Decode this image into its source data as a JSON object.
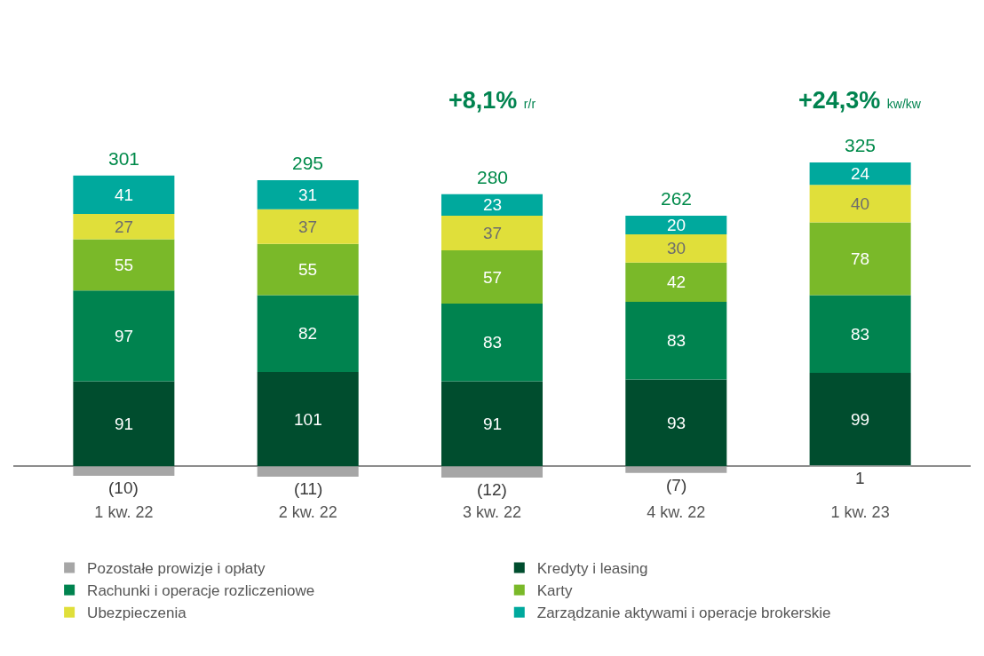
{
  "chart_data": {
    "type": "bar",
    "stacked": true,
    "categories": [
      "1 kw. 22",
      "2 kw. 22",
      "3 kw. 22",
      "4 kw. 22",
      "1 kw. 23"
    ],
    "series": [
      {
        "name": "Pozostałe prowizje i opłaty",
        "color": "#a6a6a6",
        "values": [
          -10,
          -11,
          -12,
          -7,
          1
        ],
        "value_labels": [
          "(10)",
          "(11)",
          "(12)",
          "(7)",
          "1"
        ]
      },
      {
        "name": "Kredyty i leasing",
        "color": "#004d2e",
        "values": [
          91,
          101,
          91,
          93,
          99
        ]
      },
      {
        "name": "Rachunki i operacje rozliczeniowe",
        "color": "#00834f",
        "values": [
          97,
          82,
          83,
          83,
          83
        ]
      },
      {
        "name": "Karty",
        "color": "#7ab929",
        "values": [
          55,
          55,
          57,
          42,
          78
        ]
      },
      {
        "name": "Ubezpieczenia",
        "color": "#e0df3a",
        "values": [
          27,
          37,
          37,
          30,
          40
        ]
      },
      {
        "name": "Zarządzanie aktywami i operacje brokerskie",
        "color": "#00a99d",
        "values": [
          41,
          31,
          23,
          20,
          24
        ]
      }
    ],
    "data_labels": true,
    "totals": [
      "301",
      "295",
      "280",
      "262",
      "325"
    ],
    "annotations": [
      "+8,1% r/r",
      "+24,3% kw/kw"
    ],
    "legend": "bottom"
  }
}
